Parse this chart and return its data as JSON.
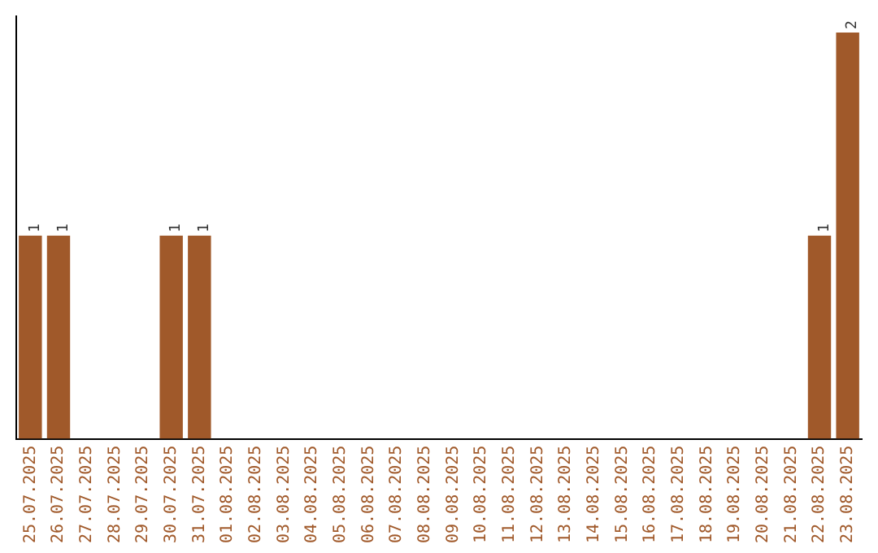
{
  "chart_data": {
    "type": "bar",
    "categories": [
      "25.07.2025",
      "26.07.2025",
      "27.07.2025",
      "28.07.2025",
      "29.07.2025",
      "30.07.2025",
      "31.07.2025",
      "01.08.2025",
      "02.08.2025",
      "03.08.2025",
      "04.08.2025",
      "05.08.2025",
      "06.08.2025",
      "07.08.2025",
      "08.08.2025",
      "09.08.2025",
      "10.08.2025",
      "11.08.2025",
      "12.08.2025",
      "13.08.2025",
      "14.08.2025",
      "15.08.2025",
      "16.08.2025",
      "17.08.2025",
      "18.08.2025",
      "19.08.2025",
      "20.08.2025",
      "21.08.2025",
      "22.08.2025",
      "23.08.2025"
    ],
    "values": [
      1,
      1,
      0,
      0,
      0,
      1,
      1,
      0,
      0,
      0,
      0,
      0,
      0,
      0,
      0,
      0,
      0,
      0,
      0,
      0,
      0,
      0,
      0,
      0,
      0,
      0,
      0,
      0,
      1,
      2
    ],
    "value_labels": [
      "1",
      "1",
      null,
      null,
      null,
      "1",
      "1",
      null,
      null,
      null,
      null,
      null,
      null,
      null,
      null,
      null,
      null,
      null,
      null,
      null,
      null,
      null,
      null,
      null,
      null,
      null,
      null,
      null,
      "1",
      "2"
    ],
    "color": "#a0592a",
    "ylim": [
      0,
      2.08
    ],
    "tick_labels": "x",
    "grid": false,
    "legend": false
  }
}
